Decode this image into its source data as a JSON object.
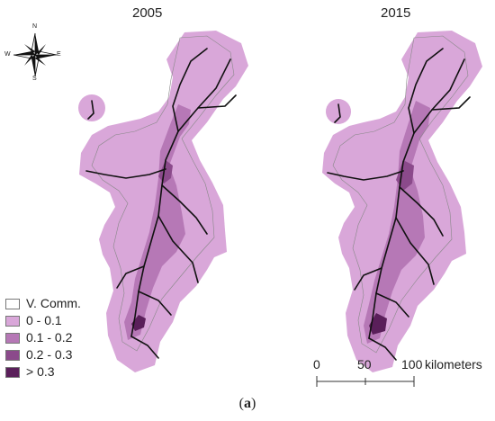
{
  "panels": [
    {
      "year": "2005"
    },
    {
      "year": "2015"
    }
  ],
  "compass": {
    "n": "N",
    "s": "S",
    "e": "E",
    "w": "W",
    "icon": "compass-rose-icon"
  },
  "legend": {
    "items": [
      {
        "label": "V. Comm.",
        "color": "#ffffff"
      },
      {
        "label": "0 - 0.1",
        "color": "#d9a7d9"
      },
      {
        "label": "0.1 - 0.2",
        "color": "#b678b6"
      },
      {
        "label": "0.2 - 0.3",
        "color": "#8b4a8b"
      },
      {
        "label": "> 0.3",
        "color": "#5a1f5a"
      }
    ]
  },
  "scalebar": {
    "ticks": [
      "0",
      "50",
      "100"
    ],
    "unit": "kilometers"
  },
  "caption": {
    "open": "(",
    "letter": "a",
    "close": ")"
  },
  "colors": {
    "region_fill": "#d9a7d9",
    "dense_fill": "#b678b6",
    "core_fill": "#8b4a8b",
    "road": "#111111"
  }
}
